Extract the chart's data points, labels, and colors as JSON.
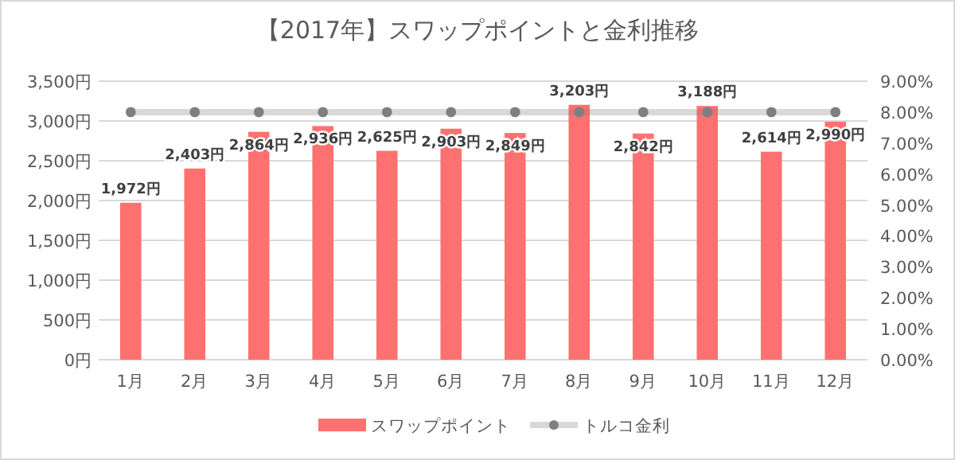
{
  "chart_data": {
    "type": "bar",
    "title": "【2017年】スワップポイントと金利推移",
    "categories": [
      "1月",
      "2月",
      "3月",
      "4月",
      "5月",
      "6月",
      "7月",
      "8月",
      "9月",
      "10月",
      "11月",
      "12月"
    ],
    "series": [
      {
        "name": "スワップポイント",
        "color": "#ff7070",
        "values": [
          1972,
          2403,
          2864,
          2936,
          2625,
          2903,
          2849,
          3203,
          2842,
          3188,
          2614,
          2990
        ],
        "value_labels": [
          "1,972円",
          "2,403円",
          "2,864円",
          "2,936円",
          "2,625円",
          "2,903円",
          "2,849円",
          "3,203円",
          "2,842円",
          "3,188円",
          "2,614円",
          "2,990円"
        ]
      },
      {
        "name": "トルコ金利",
        "type": "line",
        "axis": "y2",
        "color": "#7f7f7f",
        "marker": "circle",
        "values": [
          8,
          8,
          8,
          8,
          8,
          8,
          8,
          8,
          8,
          8,
          8,
          8
        ]
      }
    ],
    "ylim": [
      0,
      3500
    ],
    "yticks": [
      {
        "value": 0,
        "label": "0円"
      },
      {
        "value": 500,
        "label": "500円"
      },
      {
        "value": 1000,
        "label": "1,000円"
      },
      {
        "value": 1500,
        "label": "1,500円"
      },
      {
        "value": 2000,
        "label": "2,000円"
      },
      {
        "value": 2500,
        "label": "2,500円"
      },
      {
        "value": 3000,
        "label": "3,000円"
      },
      {
        "value": 3500,
        "label": "3,500円"
      }
    ],
    "y2lim": [
      0,
      9
    ],
    "y2ticks": [
      {
        "value": 0,
        "label": "0.00%"
      },
      {
        "value": 1,
        "label": "1.00%"
      },
      {
        "value": 2,
        "label": "2.00%"
      },
      {
        "value": 3,
        "label": "3.00%"
      },
      {
        "value": 4,
        "label": "4.00%"
      },
      {
        "value": 5,
        "label": "5.00%"
      },
      {
        "value": 6,
        "label": "6.00%"
      },
      {
        "value": 7,
        "label": "7.00%"
      },
      {
        "value": 8,
        "label": "8.00%"
      },
      {
        "value": 9,
        "label": "9.00%"
      }
    ],
    "grid": "y",
    "legend": "bottom"
  }
}
